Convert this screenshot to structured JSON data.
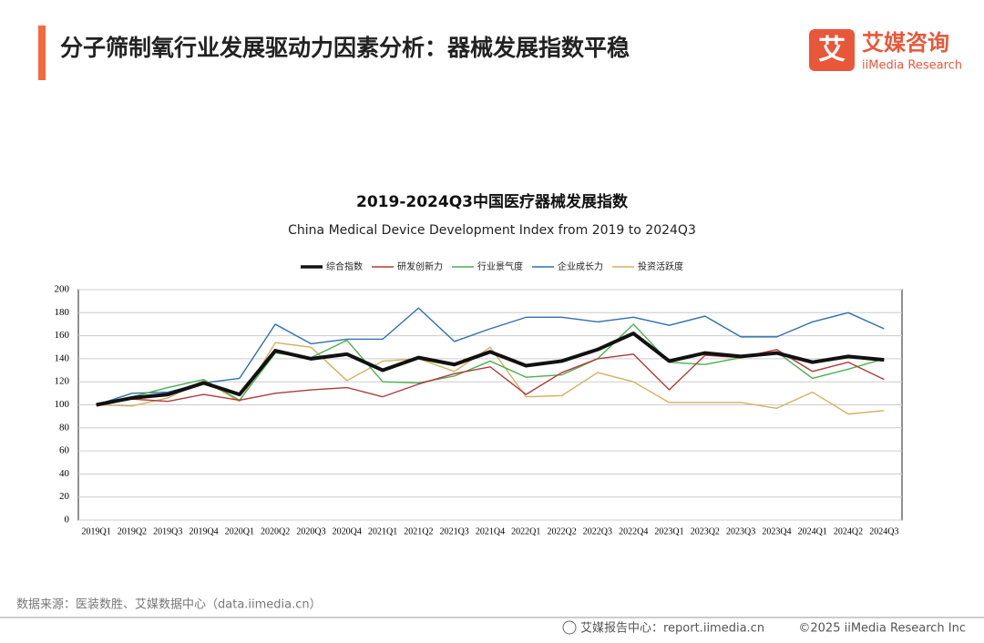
{
  "header": {
    "title": "分子筛制氧行业发展驱动力因素分析：器械发展指数平稳",
    "logo_text": "艾媒咨询",
    "logo_sub": "iiMedia Research"
  },
  "chart_data": {
    "type": "line",
    "title": "2019-2024Q3中国医疗器械发展指数",
    "subtitle": "China Medical Device Development Index from 2019 to 2024Q3",
    "categories": [
      "2019Q1",
      "2019Q2",
      "2019Q3",
      "2019Q4",
      "2020Q1",
      "2020Q2",
      "2020Q3",
      "2020Q4",
      "2021Q1",
      "2021Q2",
      "2021Q3",
      "2021Q4",
      "2022Q1",
      "2022Q2",
      "2022Q3",
      "2022Q4",
      "2023Q1",
      "2023Q2",
      "2023Q3",
      "2023Q4",
      "2024Q1",
      "2024Q2",
      "2024Q3"
    ],
    "series": [
      {
        "name": "综合指数",
        "color": "#111111",
        "values": [
          100,
          106,
          109,
          119,
          109,
          147,
          140,
          144,
          130,
          141,
          135,
          146,
          134,
          138,
          148,
          162,
          138,
          145,
          142,
          145,
          137,
          142,
          139
        ]
      },
      {
        "name": "研发创新力",
        "color": "#b03a3a",
        "values": [
          100,
          105,
          103,
          109,
          104,
          110,
          113,
          115,
          107,
          118,
          127,
          133,
          109,
          128,
          140,
          144,
          113,
          143,
          141,
          148,
          129,
          137,
          122
        ]
      },
      {
        "name": "行业景气度",
        "color": "#4caf50",
        "values": [
          100,
          107,
          115,
          122,
          104,
          145,
          141,
          156,
          120,
          119,
          125,
          138,
          124,
          126,
          140,
          170,
          137,
          135,
          141,
          146,
          123,
          131,
          140
        ]
      },
      {
        "name": "企业成长力",
        "color": "#2e6fb0",
        "values": [
          100,
          110,
          111,
          119,
          123,
          170,
          153,
          157,
          157,
          184,
          155,
          166,
          176,
          176,
          172,
          176,
          169,
          177,
          159,
          159,
          172,
          180,
          166
        ]
      },
      {
        "name": "投资活跃度",
        "color": "#d4b060",
        "values": [
          100,
          99,
          106,
          121,
          103,
          154,
          150,
          121,
          138,
          140,
          129,
          150,
          107,
          108,
          128,
          120,
          102,
          102,
          102,
          97,
          111,
          92,
          95
        ]
      }
    ],
    "ylim": [
      0,
      200
    ],
    "yticks": [
      0,
      20,
      40,
      60,
      80,
      100,
      120,
      140,
      160,
      180,
      200
    ],
    "grid": true
  },
  "footer": {
    "source": "数据来源：医装数胜、艾媒数据中心（data.iimedia.cn）",
    "report": "艾媒报告中心：report.iimedia.cn",
    "copyright": "©2025  iiMedia Research  Inc"
  }
}
